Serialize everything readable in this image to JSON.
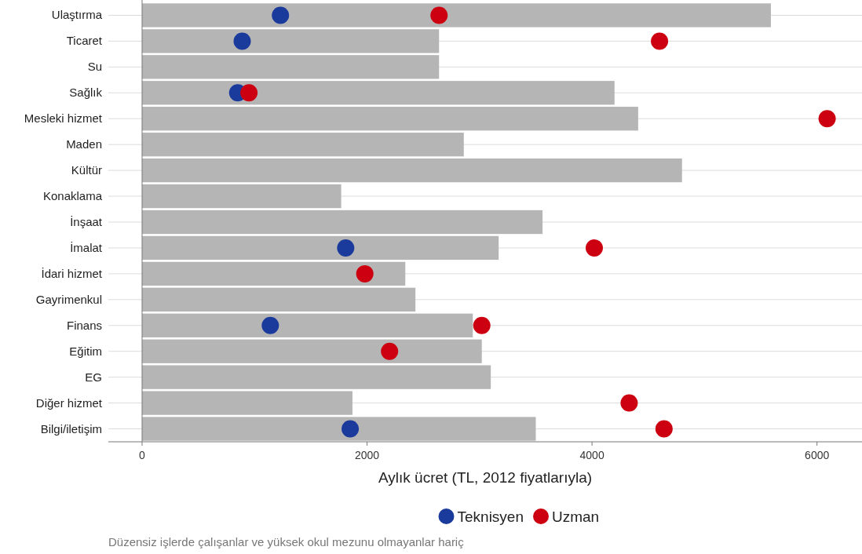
{
  "chart_data": {
    "type": "bar",
    "orientation": "horizontal",
    "xlabel": "Aylık ücret (TL, 2012 fiyatlarıyla)",
    "categories": [
      "Ulaştırma",
      "Ticaret",
      "Su",
      "Sağlık",
      "Mesleki hizmet",
      "Maden",
      "Kültür",
      "Konaklama",
      "İnşaat",
      "İmalat",
      "İdari hizmet",
      "Gayrimenkul",
      "Finans",
      "Eğitim",
      "EG",
      "Diğer hizmet",
      "Bilgi/iletişim"
    ],
    "series": [
      {
        "color": "#b5b5b5",
        "values": [
          5590,
          2640,
          2640,
          4200,
          4410,
          2860,
          4800,
          1770,
          3560,
          3170,
          2340,
          2430,
          2940,
          3020,
          3100,
          1870,
          3500
        ]
      },
      {
        "type": "scatter",
        "name": "Teknisyen",
        "color": "#1a3a9c",
        "values": [
          1230,
          890,
          null,
          850,
          null,
          null,
          null,
          null,
          null,
          1810,
          null,
          null,
          1140,
          null,
          null,
          null,
          1850
        ]
      },
      {
        "type": "scatter",
        "name": "Uzman",
        "color": "#cc0010",
        "values": [
          2640,
          4600,
          null,
          950,
          6090,
          null,
          null,
          null,
          null,
          4020,
          1980,
          null,
          3020,
          2200,
          null,
          4330,
          4640
        ]
      }
    ],
    "xlim": [
      -300,
      6400
    ],
    "xticks": [
      0,
      2000,
      4000,
      6000
    ],
    "grid": "y",
    "legend": "bottom",
    "marker": "circle",
    "ref_lines": [
      {
        "axis": "x",
        "value": 0
      }
    ],
    "annotations": [
      "Düzensiz işlerde çalışanlar ve yüksek okul mezunu olmayanlar hariç"
    ]
  }
}
